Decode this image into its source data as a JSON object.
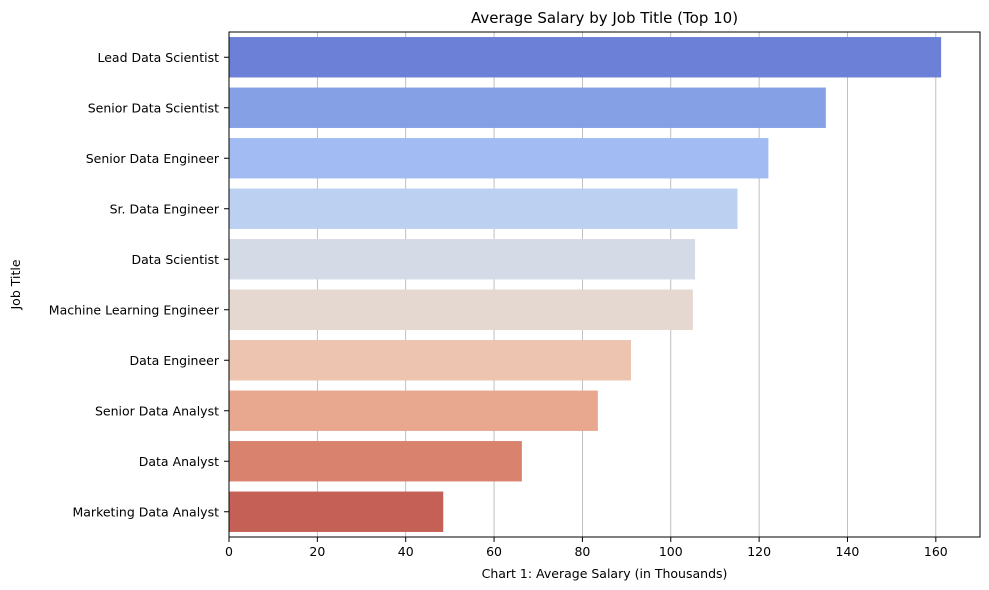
{
  "chart_data": {
    "type": "bar",
    "orientation": "horizontal",
    "title": "Average Salary by Job Title (Top 10)",
    "xlabel": "Chart 1: Average Salary (in Thousands)",
    "ylabel": "Job Title",
    "xlim": [
      0,
      170
    ],
    "xticks": [
      0,
      20,
      40,
      60,
      80,
      100,
      120,
      140,
      160
    ],
    "grid": "vertical",
    "categories": [
      "Lead Data Scientist",
      "Senior Data Scientist",
      "Senior Data Engineer",
      "Sr. Data Engineer",
      "Data Scientist",
      "Machine Learning Engineer",
      "Data Engineer",
      "Senior Data Analyst",
      "Data Analyst",
      "Marketing Data Analyst"
    ],
    "values": [
      161.2,
      135.1,
      122.1,
      115.1,
      105.5,
      105.0,
      91.0,
      83.5,
      66.3,
      48.5
    ],
    "colors": [
      "#6b80d6",
      "#86a0e5",
      "#a2bbf3",
      "#bcd0f1",
      "#d5dae7",
      "#e4d8d0",
      "#ecc4b0",
      "#e8a890",
      "#d9836f",
      "#c46056"
    ]
  }
}
